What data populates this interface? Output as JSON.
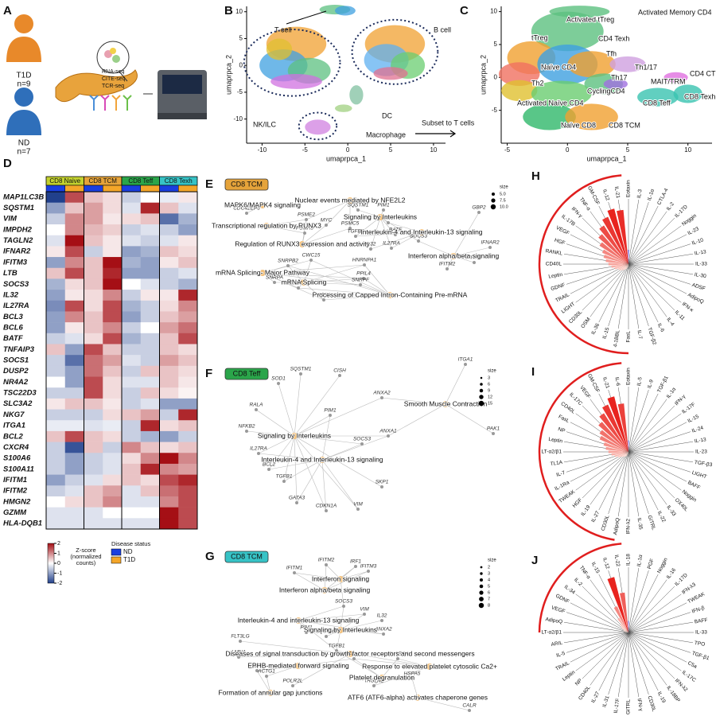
{
  "panel_letters": [
    "A",
    "B",
    "C",
    "D",
    "E",
    "F",
    "G",
    "H",
    "I",
    "J"
  ],
  "panel_a": {
    "groups": [
      {
        "name": "T1D",
        "n": "n=9"
      },
      {
        "name": "ND",
        "n": "n=7"
      }
    ],
    "assays": [
      "RNA-seq",
      "CITE-seq",
      "TCR-seq"
    ]
  },
  "panel_b": {
    "x_label": "umaprpca_1",
    "y_label": "umaprpca_2",
    "xlim": [
      -11.8,
      11.4
    ],
    "ylim": [
      -14.5,
      11
    ],
    "xticks": [
      -10,
      -5,
      0,
      5,
      10
    ],
    "yticks": [
      -10,
      -5,
      0,
      5,
      10
    ],
    "labels": [
      "T cell",
      "B cell",
      "NK/ILC",
      "DC",
      "Macrophage"
    ],
    "arrow_label": "Subset to T cells"
  },
  "panel_c": {
    "x_label": "umaprpca_1",
    "y_label": "umaprpca_2",
    "xlim": [
      -5.5,
      12
    ],
    "ylim": [
      -10,
      10.8
    ],
    "xticks": [
      -5,
      0,
      5,
      10
    ],
    "yticks": [
      -5,
      0,
      5,
      10
    ],
    "clusters": [
      "Activated tTreg",
      "Activated Memory CD4",
      "tTreg",
      "CD4 Texh",
      "Tfh",
      "Th1/17",
      "Naïve CD4",
      "Th2",
      "Th17",
      "MAIT/TRM",
      "CD4 CTL",
      "Activated Naïve CD4",
      "CyclingCD4",
      "CD8 Teff",
      "CD8 Texh",
      "Naïve CD8",
      "CD8 TCM"
    ]
  },
  "panel_d": {
    "groups": [
      {
        "name": "CD8 Naive",
        "color": "#c3d12f"
      },
      {
        "name": "CD8 TCM",
        "color": "#e5a33a"
      },
      {
        "name": "CD8 Teff",
        "color": "#2aa54a"
      },
      {
        "name": "CD8 Texh",
        "color": "#37c3c6"
      }
    ],
    "status_title": "Disease status",
    "status": [
      {
        "name": "ND",
        "color": "#1a3fe0"
      },
      {
        "name": "T1D",
        "color": "#f4a629"
      }
    ],
    "legend_title": [
      "Z-score",
      "(normalized",
      "counts)"
    ],
    "zlim": [
      -2,
      2
    ],
    "legend_ticks": [
      2,
      1,
      0,
      -1,
      -2
    ],
    "genes": [
      "MAP1LC3B",
      "SQSTM1",
      "VIM",
      "IMPDH2",
      "TAGLN2",
      "IFNAR2",
      "IFITM3",
      "LTB",
      "SOCS3",
      "IL32",
      "IL27RA",
      "BCL3",
      "BCL6",
      "BATF",
      "TNFAIP3",
      "SOCS1",
      "DUSP2",
      "NR4A2",
      "TSC22D3",
      "SLC3A2",
      "NKG7",
      "ITGA1",
      "BCL2",
      "CXCR4",
      "S100A6",
      "S100A11",
      "IFITM1",
      "IFITM2",
      "HMGN2",
      "GZMM",
      "HLA-DQB1"
    ],
    "values": [
      [
        -2,
        1.5,
        0.5,
        0.3,
        -0.5,
        0,
        -0.2,
        0.2
      ],
      [
        -1,
        0.5,
        0.8,
        0.3,
        -0.3,
        1.8,
        0.5,
        -0.3
      ],
      [
        -0.5,
        1,
        0.8,
        0.2,
        0.3,
        0.5,
        -1.5,
        -0.8
      ],
      [
        0,
        1,
        0.6,
        0.4,
        -0.5,
        -0.3,
        -0.5,
        -1
      ],
      [
        -0.3,
        2,
        0.5,
        0.2,
        -0.3,
        -0.5,
        -0.3,
        0.2
      ],
      [
        0.2,
        1.5,
        -0.5,
        0.2,
        -1,
        -0.8,
        0.5,
        0.3
      ],
      [
        -1,
        1,
        0.5,
        2,
        -0.8,
        -1,
        0.2,
        0.5
      ],
      [
        0.5,
        1.5,
        0.5,
        1.8,
        -1,
        -1,
        -0.5,
        -0.3
      ],
      [
        -0.8,
        0.3,
        0.5,
        2.2,
        0,
        -0.3,
        -0.5,
        -0.8
      ],
      [
        -1,
        0.2,
        0.3,
        1,
        -0.5,
        0.2,
        0.2,
        1.8
      ],
      [
        -1.2,
        1.5,
        0.3,
        1.5,
        -0.8,
        -0.5,
        0.3,
        1
      ],
      [
        -1,
        1,
        0.5,
        1.5,
        -1,
        -0.5,
        0.5,
        0.8
      ],
      [
        -1,
        0.2,
        0.5,
        1,
        -0.5,
        0,
        0.8,
        1.2
      ],
      [
        -0.5,
        -0.3,
        0.3,
        1.5,
        -0.8,
        -0.5,
        0.5,
        1.5
      ],
      [
        0.5,
        -1,
        1.5,
        0.5,
        -0.5,
        -0.5,
        0.5,
        0.3
      ],
      [
        -0.5,
        -1.5,
        1.2,
        0.8,
        -0.3,
        -0.5,
        0.8,
        0.5
      ],
      [
        -0.5,
        -1,
        1.2,
        0.5,
        -0.5,
        0.5,
        0.5,
        0.3
      ],
      [
        0,
        -1,
        1.5,
        0.3,
        -0.3,
        -0.3,
        0.5,
        0.2
      ],
      [
        -0.5,
        -0.5,
        1.5,
        0.3,
        -0.5,
        0.5,
        0.3,
        0.1
      ],
      [
        0.2,
        0.5,
        0.5,
        0.2,
        -0.5,
        -0.3,
        -1,
        -1
      ],
      [
        -0.5,
        -0.5,
        -0.5,
        0.3,
        0.5,
        0.8,
        -0.5,
        1.8
      ],
      [
        -0.2,
        -0.2,
        -0.3,
        -0.2,
        -0.5,
        1.8,
        0.3,
        0.5
      ],
      [
        0.5,
        1.5,
        0.5,
        0.3,
        -0.5,
        -0.8,
        -1,
        -0.5
      ],
      [
        -0.5,
        -1.8,
        0.5,
        -0.5,
        1,
        0.5,
        0.3,
        0.5
      ],
      [
        -0.5,
        -1,
        -0.5,
        -0.3,
        0.3,
        1,
        2,
        1
      ],
      [
        -0.5,
        -1,
        -0.5,
        -0.3,
        0.5,
        1.8,
        1,
        0.8
      ],
      [
        -1,
        -0.5,
        -0.3,
        0.3,
        0.5,
        0.3,
        1.5,
        1.8
      ],
      [
        -0.5,
        -0.3,
        0.5,
        0.8,
        -0.3,
        0.5,
        1.2,
        1.5
      ],
      [
        0,
        0.3,
        0.5,
        1,
        -0.3,
        -0.3,
        1,
        1.5
      ],
      [
        -0.3,
        -0.3,
        -0.3,
        0,
        0,
        0,
        2,
        1.5
      ],
      [
        -0.3,
        -0.3,
        -0.3,
        -0.3,
        -0.3,
        -0.3,
        2,
        1.5
      ]
    ]
  },
  "panel_e": {
    "title": "CD8 TCM",
    "color": "#e5a33a",
    "pathways": [
      "Nuclear events mediated by NFE2L2",
      "MAPK6/MAPK4 signaling",
      "Signaling by Interleukins",
      "Transcriptional regulation by RUNX3",
      "Interleukin-4 and Interleukin-13 signaling",
      "Regulation of RUNX3 expression and activity",
      "Interferon alpha/beta signaling",
      "mRNA Splicing- Major Pathway",
      "mRNA Splicing",
      "Processing of Capped Intron-Containing Pre-mRNA"
    ],
    "genes": [
      "CDC42EP3",
      "PSME2",
      "MYC",
      "SQSTM1",
      "PIM1",
      "PSMC5",
      "PSMA5",
      "TGFB1",
      "BCL6",
      "BATF",
      "IL32",
      "IL27RA",
      "SOCS3",
      "GBP2",
      "IFNAR2",
      "IFITM3",
      "IFITM2",
      "CWC15",
      "SNRPB2",
      "HNRNPA1",
      "SNRPA",
      "POLR2K",
      "PPIL4",
      "SNRPF",
      "PPIH"
    ],
    "size_title": "size",
    "size_ticks": [
      {
        "value": 5,
        "label": "5.0"
      },
      {
        "value": 7.5,
        "label": "7.5"
      },
      {
        "value": 10,
        "label": "10.0"
      }
    ]
  },
  "panel_f": {
    "title": "CD8 Teff",
    "color": "#2aa54a",
    "pathways": [
      "Smooth Muscle Contraction",
      "Signaling by Interleukins",
      "Interleukin-4 and Interleukin-13 signaling"
    ],
    "genes": [
      "ITGA1",
      "SQSTM1",
      "CISH",
      "SOD1",
      "ANXA2",
      "RALA",
      "PIM1",
      "PAK1",
      "NFKB2",
      "ANXA1",
      "SOCS3",
      "IL27RA",
      "BCL2",
      "TGFB1",
      "SKP1",
      "GATA3",
      "CDKN1A",
      "VIM"
    ],
    "size_title": "size",
    "size_ticks": [
      3,
      6,
      9,
      12,
      15
    ]
  },
  "panel_g": {
    "title": "CD8 TCM",
    "color": "#37c3c6",
    "pathways": [
      "Interferon signaling",
      "Interferon alpha/beta signaling",
      "Interleukin-4 and interleukin-13 signaling",
      "Signaling by Interleukins",
      "Diseases of signal transduction by growth factor receptors and second messengers",
      "EPHB-mediated forward signaling",
      "Response to elevated platelet cytosolic Ca2+",
      "Platelet degranulation",
      "Formation of annular gap junctions",
      "ATF6 (ATF6-alpha) activates chaperone genes"
    ],
    "genes": [
      "IFITM2",
      "IRF1",
      "IFITM3",
      "IFITM1",
      "SOCS3",
      "VIM",
      "IL32",
      "ANXA2",
      "PIM1",
      "SQSTM1",
      "FLT3LG",
      "LMNA",
      "TGFB1",
      "CFL1",
      "TMSB4X",
      "ACTB",
      "ACTG1",
      "HSPA5",
      "POLR2L",
      "TAGLN2",
      "CALR"
    ],
    "size_title": "size",
    "size_ticks": [
      2,
      3,
      4,
      5,
      6,
      7,
      8
    ]
  },
  "panel_h": {
    "labels": [
      "Eotaxin",
      "IL-3",
      "IL-1α",
      "CTLA-4",
      "IL-2",
      "IL-17D",
      "Noggin",
      "IL-23",
      "IL-10",
      "IL-13",
      "IL-33",
      "IL-30",
      "ADSF",
      "AdipoQ",
      "IFN-κ",
      "IL-11",
      "IL-4",
      "IL-6",
      "TGF-β2",
      "IL-7",
      "FasL",
      "4-1BBL",
      "IL-15",
      "IL-36",
      "OSM",
      "CD30L",
      "LIGHT",
      "TRAIL",
      "GDNF",
      "Leptin",
      "CD40L",
      "RANKL",
      "HGF",
      "VEGF",
      "IL-17B",
      "IFN-γ",
      "TNF-α",
      "GM-CSF",
      "IL-12",
      "IL-21"
    ],
    "values": [
      -0.25,
      0,
      0,
      0,
      0,
      0,
      0,
      0,
      0,
      0,
      0,
      0,
      0,
      0,
      0,
      0,
      0,
      0,
      0,
      0,
      0.03,
      0.05,
      0.07,
      0.1,
      0.12,
      0.15,
      0.18,
      0.2,
      0.25,
      0.3,
      0.35,
      0.4,
      0.45,
      0.5,
      0.6,
      0.7,
      0.8,
      0.9,
      1,
      0.95
    ]
  },
  "panel_i": {
    "labels": [
      "Eotaxin",
      "IL-5",
      "IL-9",
      "TGF-β1",
      "IL-1α",
      "IFN-γ",
      "IL-17F",
      "IL-15",
      "IL-24",
      "IL-13",
      "IL-23",
      "TGF-β3",
      "LIGHT",
      "BAFF",
      "Noggin",
      "OX40L",
      "IL-33",
      "IL-22",
      "GITRL",
      "IL-35",
      "IFN-λ2",
      "AdipoQ",
      "CD30L",
      "IL-27",
      "IL-19",
      "HGF",
      "TWEAK",
      "IL-1Ra",
      "IL-7",
      "TL1A",
      "LT-α2/β1",
      "Leptin",
      "NP",
      "FasL",
      "CD40L",
      "IL-17C",
      "VEGF",
      "GM-CSF",
      "IL-21",
      "IL-6"
    ],
    "values": [
      -0.2,
      0,
      0,
      0,
      0,
      0,
      0,
      0,
      0,
      0,
      0,
      0,
      0,
      0,
      0,
      0,
      0,
      0,
      0,
      0,
      0,
      0.03,
      0.05,
      0.08,
      0.1,
      0.12,
      0.15,
      0.2,
      0.25,
      0.3,
      0.35,
      0.4,
      0.45,
      0.55,
      0.6,
      0.7,
      0.8,
      0.9,
      1,
      0.85
    ]
  },
  "panel_j": {
    "labels": [
      "IL-18",
      "IL-1α",
      "PGF",
      "Noggin",
      "IL-16",
      "IL-17D",
      "IFN-λ3",
      "TWEAK",
      "IFN-β",
      "BAFF",
      "IL-33",
      "TPO",
      "TGF-β1",
      "C5a",
      "IL-17C",
      "IFN-λ2",
      "IL-18BP",
      "IL-19",
      "CD30L",
      "IFN-γ",
      "GITRL",
      "IL-17F",
      "IL-31",
      "IL-27",
      "CD40L",
      "NP",
      "Leptin",
      "TRAIL",
      "IL-5",
      "ARIL",
      "LT-α2/β1",
      "AdipoQ",
      "VEGF",
      "GDNF",
      "IL-34",
      "IL-2",
      "TNF-α",
      "IL-15",
      "IL-12",
      "IL-22"
    ],
    "values": [
      -0.2,
      0,
      0,
      0,
      0,
      0,
      0,
      0,
      0,
      0,
      0,
      0,
      0,
      0,
      0,
      0,
      0,
      0,
      0,
      0,
      0,
      0,
      0,
      0,
      0,
      0,
      0,
      0,
      0,
      0,
      0.03,
      0.05,
      0.08,
      0.1,
      0.15,
      0.2,
      0.3,
      0.5,
      1,
      0.7
    ]
  }
}
